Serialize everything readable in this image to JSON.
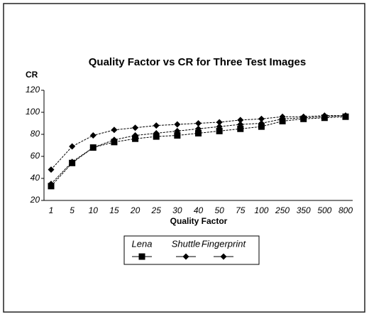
{
  "chart_data": {
    "type": "line",
    "title": "Quality Factor vs CR for Three Test Images",
    "y_label": "CR",
    "x_label": "Quality Factor",
    "categories": [
      "1",
      "5",
      "10",
      "15",
      "20",
      "25",
      "30",
      "40",
      "50",
      "75",
      "100",
      "250",
      "350",
      "500",
      "800"
    ],
    "series": [
      {
        "name": "Lena",
        "color": "#000000",
        "marker": "square",
        "values": [
          33,
          54,
          68,
          73,
          76,
          78,
          79,
          81,
          83,
          85,
          87,
          92,
          94,
          95,
          96
        ]
      },
      {
        "name": "Shuttle",
        "color": "#000000",
        "marker": "diamond",
        "values": [
          35,
          55,
          68,
          75,
          79,
          81,
          83,
          85,
          87,
          89,
          90,
          94,
          95,
          96,
          97
        ]
      },
      {
        "name": "Fingerprint",
        "color": "#000000",
        "marker": "diamond",
        "values": [
          48,
          69,
          79,
          84,
          86,
          88,
          89,
          90,
          91,
          93,
          94,
          96,
          96,
          97,
          97
        ]
      }
    ],
    "ylim": [
      20,
      120
    ],
    "yticks": [
      20,
      40,
      60,
      80,
      100,
      120
    ]
  }
}
